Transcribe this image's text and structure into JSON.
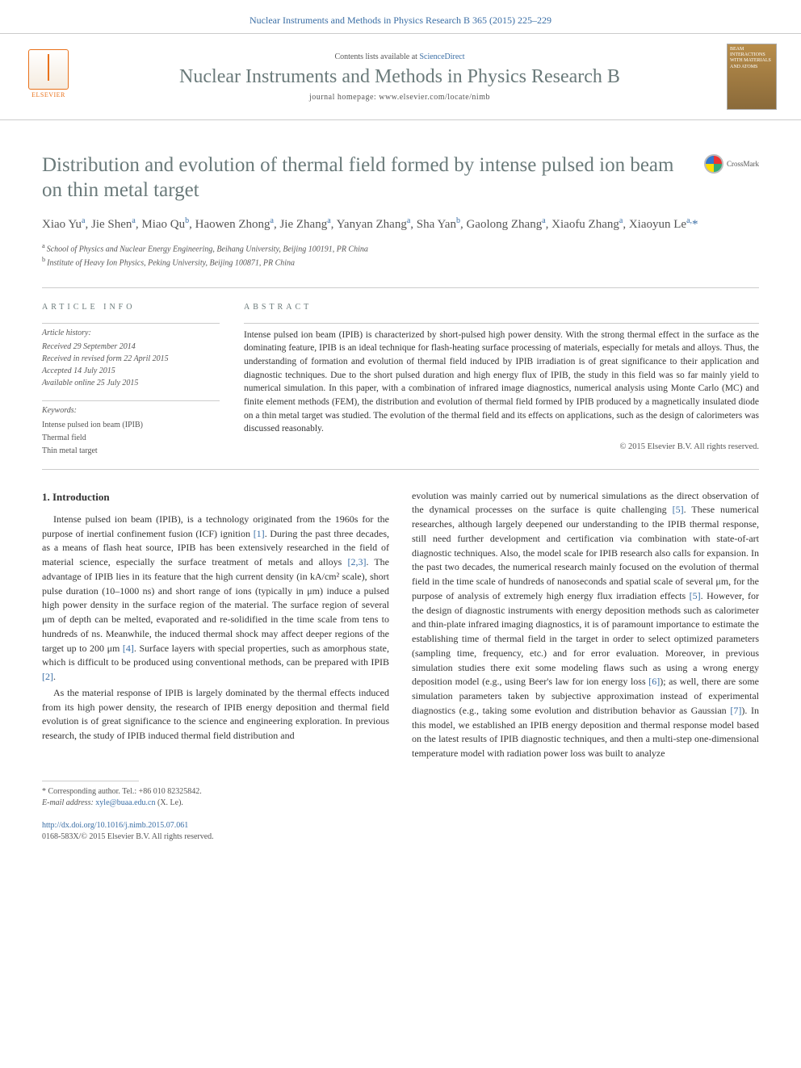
{
  "header": {
    "citation": "Nuclear Instruments and Methods in Physics Research B 365 (2015) 225–229",
    "contents_prefix": "Contents lists available at ",
    "contents_link": "ScienceDirect",
    "journal_name": "Nuclear Instruments and Methods in Physics Research B",
    "homepage_prefix": "journal homepage: ",
    "homepage_url": "www.elsevier.com/locate/nimb",
    "elsevier_label": "ELSEVIER",
    "cover_text": "BEAM INTERACTIONS WITH MATERIALS AND ATOMS",
    "crossmark": "CrossMark"
  },
  "article": {
    "title": "Distribution and evolution of thermal field formed by intense pulsed ion beam on thin metal target",
    "authors_html": "Xiao Yu<sup>a</sup>, Jie Shen<sup>a</sup>, Miao Qu<sup>b</sup>, Haowen Zhong<sup>a</sup>, Jie Zhang<sup>a</sup>, Yanyan Zhang<sup>a</sup>, Sha Yan<sup>b</sup>, Gaolong Zhang<sup>a</sup>, Xiaofu Zhang<sup>a</sup>, Xiaoyun Le<sup>a,</sup><span class='corr'>*</span>",
    "affiliations": {
      "a": "School of Physics and Nuclear Energy Engineering, Beihang University, Beijing 100191, PR China",
      "b": "Institute of Heavy Ion Physics, Peking University, Beijing 100871, PR China"
    }
  },
  "info": {
    "heading": "article info",
    "history_label": "Article history:",
    "history": [
      "Received 29 September 2014",
      "Received in revised form 22 April 2015",
      "Accepted 14 July 2015",
      "Available online 25 July 2015"
    ],
    "keywords_label": "Keywords:",
    "keywords": [
      "Intense pulsed ion beam (IPIB)",
      "Thermal field",
      "Thin metal target"
    ]
  },
  "abstract": {
    "heading": "abstract",
    "text": "Intense pulsed ion beam (IPIB) is characterized by short-pulsed high power density. With the strong thermal effect in the surface as the dominating feature, IPIB is an ideal technique for flash-heating surface processing of materials, especially for metals and alloys. Thus, the understanding of formation and evolution of thermal field induced by IPIB irradiation is of great significance to their application and diagnostic techniques. Due to the short pulsed duration and high energy flux of IPIB, the study in this field was so far mainly yield to numerical simulation. In this paper, with a combination of infrared image diagnostics, numerical analysis using Monte Carlo (MC) and finite element methods (FEM), the distribution and evolution of thermal field formed by IPIB produced by a magnetically insulated diode on a thin metal target was studied. The evolution of the thermal field and its effects on applications, such as the design of calorimeters was discussed reasonably.",
    "copyright": "© 2015 Elsevier B.V. All rights reserved."
  },
  "body": {
    "section_heading": "1. Introduction",
    "col1_p1": "Intense pulsed ion beam (IPIB), is a technology originated from the 1960s for the purpose of inertial confinement fusion (ICF) ignition [1]. During the past three decades, as a means of flash heat source, IPIB has been extensively researched in the field of material science, especially the surface treatment of metals and alloys [2,3]. The advantage of IPIB lies in its feature that the high current density (in kA/cm² scale), short pulse duration (10–1000 ns) and short range of ions (typically in μm) induce a pulsed high power density in the surface region of the material. The surface region of several μm of depth can be melted, evaporated and re-solidified in the time scale from tens to hundreds of ns. Meanwhile, the induced thermal shock may affect deeper regions of the target up to 200 μm [4]. Surface layers with special properties, such as amorphous state, which is difficult to be produced using conventional methods, can be prepared with IPIB [2].",
    "col1_p2": "As the material response of IPIB is largely dominated by the thermal effects induced from its high power density, the research of IPIB energy deposition and thermal field evolution is of great significance to the science and engineering exploration. In previous research, the study of IPIB induced thermal field distribution and",
    "col2_p1": "evolution was mainly carried out by numerical simulations as the direct observation of the dynamical processes on the surface is quite challenging [5]. These numerical researches, although largely deepened our understanding to the IPIB thermal response, still need further development and certification via combination with state-of-art diagnostic techniques. Also, the model scale for IPIB research also calls for expansion. In the past two decades, the numerical research mainly focused on the evolution of thermal field in the time scale of hundreds of nanoseconds and spatial scale of several μm, for the purpose of analysis of extremely high energy flux irradiation effects [5]. However, for the design of diagnostic instruments with energy deposition methods such as calorimeter and thin-plate infrared imaging diagnostics, it is of paramount importance to estimate the establishing time of thermal field in the target in order to select optimized parameters (sampling time, frequency, etc.) and for error evaluation. Moreover, in previous simulation studies there exit some modeling flaws such as using a wrong energy deposition model (e.g., using Beer's law for ion energy loss [6]); as well, there are some simulation parameters taken by subjective approximation instead of experimental diagnostics (e.g., taking some evolution and distribution behavior as Gaussian [7]). In this model, we established an IPIB energy deposition and thermal response model based on the latest results of IPIB diagnostic techniques, and then a multi-step one-dimensional temperature model with radiation power loss was built to analyze"
  },
  "footnotes": {
    "corr": "* Corresponding author. Tel.: +86 010 82325842.",
    "email_label": "E-mail address: ",
    "email": "xyle@buaa.edu.cn",
    "email_suffix": " (X. Le)."
  },
  "footer": {
    "doi": "http://dx.doi.org/10.1016/j.nimb.2015.07.061",
    "issn": "0168-583X/© 2015 Elsevier B.V. All rights reserved."
  },
  "colors": {
    "link": "#3a6ea5",
    "heading": "#6a7a7a",
    "publisher": "#e9711a"
  }
}
